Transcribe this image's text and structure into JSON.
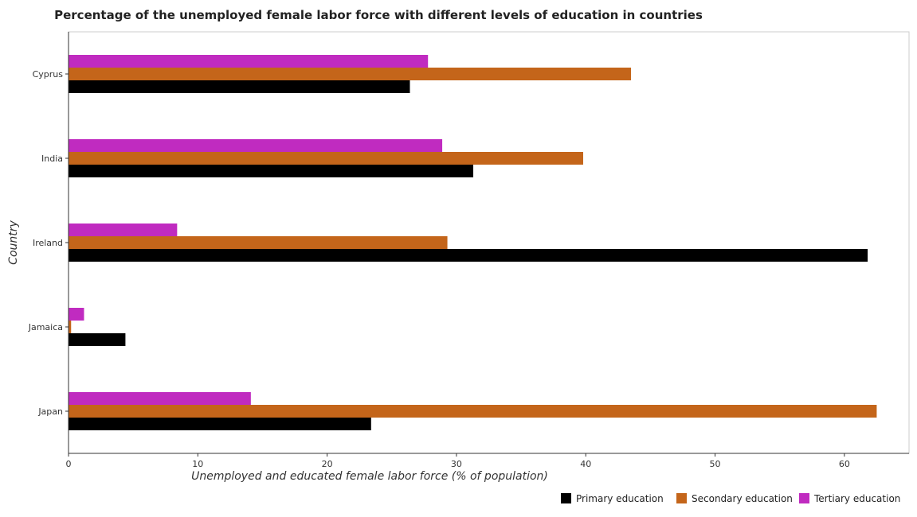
{
  "chart_data": {
    "type": "bar",
    "orientation": "horizontal",
    "title": "Percentage of the unemployed female labor force with different levels of education in countries",
    "xlabel": "Unemployed and educated female labor force (% of population)",
    "ylabel": "Country",
    "xlim": [
      0,
      65
    ],
    "xticks": [
      0,
      10,
      20,
      30,
      40,
      50,
      60
    ],
    "categories": [
      "Cyprus",
      "India",
      "Ireland",
      "Jamaica",
      "Japan"
    ],
    "series": [
      {
        "name": "Primary education",
        "color": "#000000",
        "values": [
          26.4,
          31.3,
          61.8,
          4.4,
          23.4
        ]
      },
      {
        "name": "Secondary education",
        "color": "#c4651a",
        "values": [
          43.5,
          39.8,
          29.3,
          0.2,
          62.5
        ]
      },
      {
        "name": "Tertiary education",
        "color": "#c02bc0",
        "values": [
          27.8,
          28.9,
          8.4,
          1.2,
          14.1
        ]
      }
    ],
    "grid": false,
    "legend_position": "bottom-right"
  }
}
